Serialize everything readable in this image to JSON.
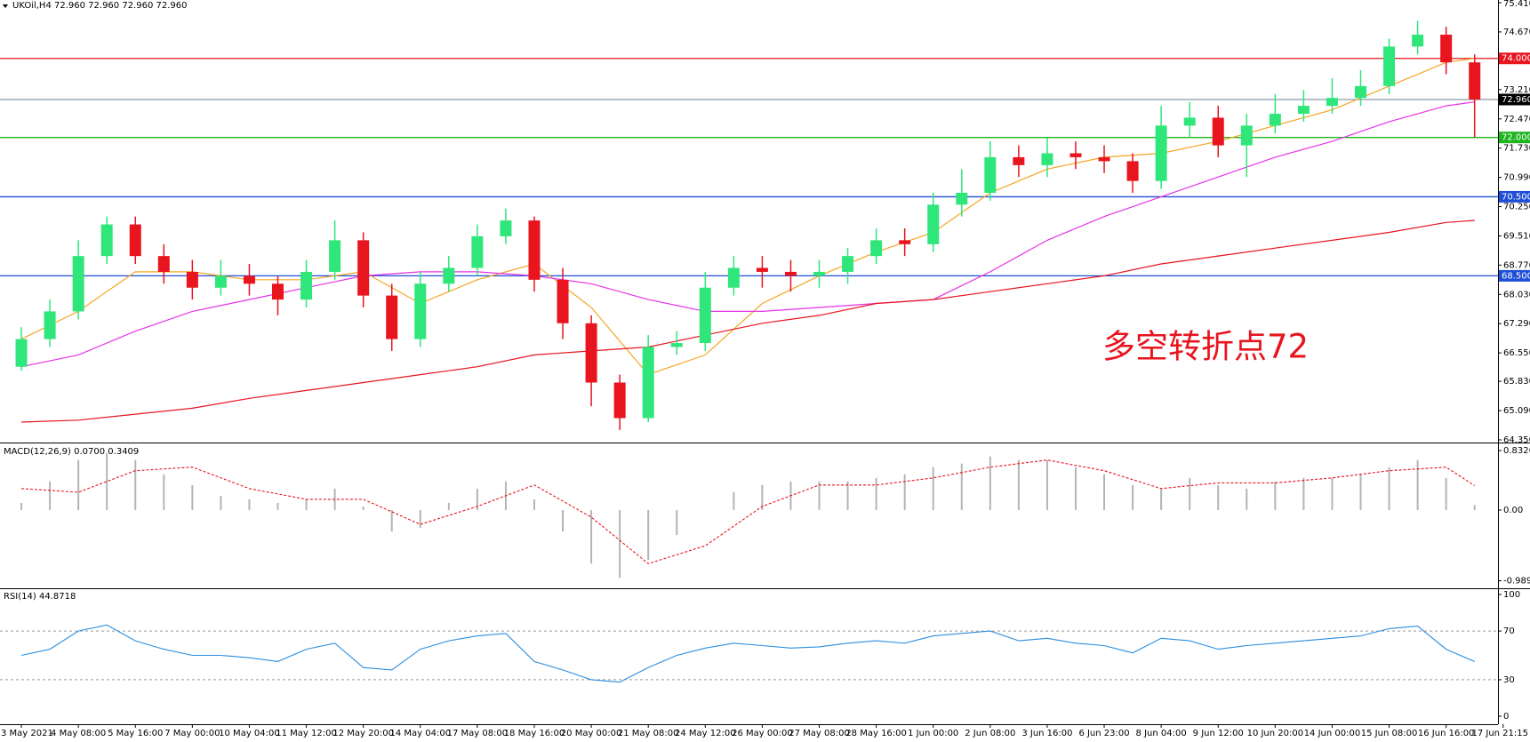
{
  "chart_data": [
    {
      "type": "candlestick",
      "title": "UKOil,H4 72.960 72.960 72.960 72.960",
      "annotation": "多空转折点72",
      "up_color": "#2ee67a",
      "down_color": "#e8141e",
      "x": [
        0,
        1,
        2,
        3,
        4,
        5,
        6,
        7,
        8,
        9,
        10,
        11,
        12,
        13,
        14,
        15,
        16,
        17,
        18,
        19,
        20,
        21,
        22,
        23,
        24,
        25,
        26,
        27,
        28,
        29,
        30,
        31,
        32,
        33,
        34,
        35,
        36,
        37,
        38,
        39,
        40,
        41,
        42,
        43,
        44,
        45,
        46,
        47,
        48,
        49,
        50,
        51
      ],
      "open": [
        66.2,
        66.9,
        67.6,
        69.0,
        69.8,
        69.0,
        68.6,
        68.2,
        68.5,
        68.3,
        67.9,
        68.6,
        69.4,
        68.0,
        66.9,
        68.3,
        68.7,
        69.5,
        69.9,
        68.4,
        67.3,
        65.8,
        64.9,
        66.7,
        66.8,
        68.2,
        68.7,
        68.6,
        68.5,
        68.6,
        69.0,
        69.4,
        69.3,
        70.3,
        70.6,
        71.5,
        71.3,
        71.6,
        71.5,
        71.4,
        70.9,
        72.3,
        72.5,
        71.8,
        72.3,
        72.6,
        72.8,
        73.0,
        73.3,
        74.3,
        74.6,
        73.9
      ],
      "high": [
        67.2,
        67.9,
        69.4,
        70.0,
        70.0,
        69.3,
        68.9,
        68.9,
        68.8,
        68.5,
        68.9,
        69.9,
        69.6,
        68.3,
        68.6,
        69.0,
        69.8,
        70.2,
        70.0,
        68.7,
        67.5,
        66.0,
        67.0,
        67.1,
        68.6,
        69.0,
        69.0,
        68.9,
        68.9,
        69.2,
        69.7,
        69.7,
        70.6,
        71.2,
        71.9,
        71.8,
        72.0,
        71.9,
        71.8,
        71.6,
        72.8,
        72.9,
        72.8,
        72.6,
        73.1,
        73.2,
        73.5,
        73.7,
        74.5,
        74.95,
        74.8,
        74.1
      ],
      "low": [
        66.1,
        66.7,
        67.4,
        68.8,
        68.8,
        68.3,
        67.9,
        68.0,
        68.0,
        67.5,
        67.7,
        68.4,
        67.7,
        66.6,
        66.7,
        68.1,
        68.5,
        69.3,
        68.1,
        66.9,
        65.2,
        64.6,
        64.8,
        66.5,
        66.6,
        68.0,
        68.2,
        68.1,
        68.2,
        68.3,
        68.8,
        69.0,
        69.1,
        70.0,
        70.4,
        71.0,
        71.0,
        71.2,
        71.1,
        70.6,
        70.7,
        72.0,
        71.5,
        71.0,
        72.1,
        72.4,
        72.6,
        72.8,
        73.1,
        74.1,
        73.6,
        72.0
      ],
      "close": [
        66.9,
        67.6,
        69.0,
        69.8,
        69.0,
        68.6,
        68.2,
        68.5,
        68.3,
        67.9,
        68.6,
        69.4,
        68.0,
        66.9,
        68.3,
        68.7,
        69.5,
        69.9,
        68.4,
        67.3,
        65.8,
        64.9,
        66.7,
        66.8,
        68.2,
        68.7,
        68.6,
        68.5,
        68.6,
        69.0,
        69.4,
        69.3,
        70.3,
        70.6,
        71.5,
        71.3,
        71.6,
        71.5,
        71.4,
        70.9,
        72.3,
        72.5,
        71.8,
        72.3,
        72.6,
        72.8,
        73.0,
        73.3,
        74.3,
        74.6,
        73.9,
        72.96
      ],
      "series": [
        {
          "color": "#f5a623",
          "x": [
            0,
            2,
            4,
            6,
            8,
            10,
            12,
            14,
            16,
            18,
            20,
            22,
            24,
            26,
            28,
            30,
            32,
            34,
            36,
            38,
            40,
            42,
            44,
            46,
            48,
            50,
            51
          ],
          "values": [
            66.9,
            67.6,
            68.6,
            68.6,
            68.4,
            68.4,
            68.6,
            67.8,
            68.4,
            68.8,
            67.7,
            66.0,
            66.5,
            67.8,
            68.5,
            69.1,
            69.6,
            70.6,
            71.2,
            71.5,
            71.6,
            71.9,
            72.3,
            72.7,
            73.3,
            73.9,
            74.0
          ]
        },
        {
          "color": "#e633e6",
          "x": [
            0,
            2,
            4,
            6,
            8,
            10,
            12,
            14,
            16,
            18,
            20,
            22,
            24,
            26,
            28,
            30,
            32,
            34,
            36,
            38,
            40,
            42,
            44,
            46,
            48,
            50,
            51
          ],
          "values": [
            66.2,
            66.5,
            67.1,
            67.6,
            67.9,
            68.2,
            68.5,
            68.6,
            68.6,
            68.5,
            68.3,
            67.9,
            67.6,
            67.6,
            67.7,
            67.8,
            67.9,
            68.6,
            69.4,
            70.0,
            70.5,
            71.0,
            71.5,
            71.9,
            72.4,
            72.8,
            72.9
          ]
        },
        {
          "color": "#e8141e",
          "x": [
            0,
            2,
            4,
            6,
            8,
            10,
            12,
            14,
            16,
            18,
            20,
            22,
            24,
            26,
            28,
            30,
            32,
            34,
            36,
            38,
            40,
            42,
            44,
            46,
            48,
            50,
            51
          ],
          "values": [
            64.8,
            64.85,
            65.0,
            65.15,
            65.4,
            65.6,
            65.8,
            66.0,
            66.2,
            66.5,
            66.6,
            66.7,
            67.0,
            67.3,
            67.5,
            67.8,
            67.9,
            68.1,
            68.3,
            68.5,
            68.8,
            69.0,
            69.2,
            69.4,
            69.6,
            69.85,
            69.9
          ]
        }
      ],
      "levels": [
        {
          "value": 74,
          "label": "74.000",
          "color": "#e8141e"
        },
        {
          "value": 72.96,
          "label": "72.960",
          "color": "#000000"
        },
        {
          "value": 72,
          "label": "72.000",
          "color": "#1db51d"
        },
        {
          "value": 70.5,
          "label": "70.500",
          "color": "#1f4fd6"
        },
        {
          "value": 68.5,
          "label": "68.500",
          "color": "#1f4fd6"
        }
      ],
      "xlim": [
        -0.75,
        51.82
      ],
      "xticks": [
        {
          "value": 0,
          "label": "3 May 2021"
        },
        {
          "value": 2,
          "label": "4 May 08:00"
        },
        {
          "value": 4,
          "label": "5 May 16:00"
        },
        {
          "value": 6,
          "label": "7 May 00:00"
        },
        {
          "value": 8,
          "label": "10 May 04:00"
        },
        {
          "value": 10,
          "label": "11 May 12:00"
        },
        {
          "value": 12,
          "label": "12 May 20:00"
        },
        {
          "value": 14,
          "label": "14 May 04:00"
        },
        {
          "value": 16,
          "label": "17 May 08:00"
        },
        {
          "value": 18,
          "label": "18 May 16:00"
        },
        {
          "value": 20,
          "label": "20 May 00:00"
        },
        {
          "value": 22,
          "label": "21 May 08:00"
        },
        {
          "value": 24,
          "label": "24 May 12:00"
        },
        {
          "value": 26,
          "label": "26 May 00:00"
        },
        {
          "value": 28,
          "label": "27 May 08:00"
        },
        {
          "value": 30,
          "label": "28 May 16:00"
        },
        {
          "value": 32,
          "label": "1 Jun 00:00"
        },
        {
          "value": 34,
          "label": "2 Jun 08:00"
        },
        {
          "value": 36,
          "label": "3 Jun 16:00"
        },
        {
          "value": 38,
          "label": "6 Jun 23:00"
        },
        {
          "value": 40,
          "label": "8 Jun 04:00"
        },
        {
          "value": 42,
          "label": "9 Jun 12:00"
        },
        {
          "value": 44,
          "label": "10 Jun 20:00"
        },
        {
          "value": 46,
          "label": "14 Jun 00:00"
        },
        {
          "value": 48,
          "label": "15 Jun 08:00"
        },
        {
          "value": 50,
          "label": "16 Jun 16:00"
        },
        {
          "value": 52,
          "label": "17 Jun 21:15"
        }
      ],
      "ylim": [
        64.35,
        75.41
      ],
      "yticks": [
        {
          "value": 75.41,
          "label": "75.410"
        },
        {
          "value": 74.67,
          "label": "74.670"
        },
        {
          "value": 73.21,
          "label": "73.210"
        },
        {
          "value": 72.47,
          "label": "72.470"
        },
        {
          "value": 71.73,
          "label": "71.730"
        },
        {
          "value": 70.99,
          "label": "70.990"
        },
        {
          "value": 70.25,
          "label": "70.250"
        },
        {
          "value": 69.51,
          "label": "69.510"
        },
        {
          "value": 68.77,
          "label": "68.770"
        },
        {
          "value": 68.03,
          "label": "68.030"
        },
        {
          "value": 67.29,
          "label": "67.290"
        },
        {
          "value": 66.55,
          "label": "66.550"
        },
        {
          "value": 65.83,
          "label": "65.830"
        },
        {
          "value": 65.09,
          "label": "65.090"
        },
        {
          "value": 64.35,
          "label": "64.350"
        }
      ]
    },
    {
      "type": "macd",
      "title": "MACD(12,26,9) 0.0700 0.3409",
      "color": "#b4b4b4",
      "x": [
        0,
        1,
        2,
        3,
        4,
        5,
        6,
        7,
        8,
        9,
        10,
        11,
        12,
        13,
        14,
        15,
        16,
        17,
        18,
        19,
        20,
        21,
        22,
        23,
        24,
        25,
        26,
        27,
        28,
        29,
        30,
        31,
        32,
        33,
        34,
        35,
        36,
        37,
        38,
        39,
        40,
        41,
        42,
        43,
        44,
        45,
        46,
        47,
        48,
        49,
        50,
        51
      ],
      "values": [
        0.1,
        0.4,
        0.7,
        0.8,
        0.7,
        0.5,
        0.35,
        0.2,
        0.15,
        0.1,
        0.15,
        0.3,
        0.05,
        -0.3,
        -0.25,
        0.1,
        0.3,
        0.4,
        0.15,
        -0.3,
        -0.75,
        -0.95,
        -0.7,
        -0.35,
        0.0,
        0.25,
        0.35,
        0.4,
        0.4,
        0.4,
        0.45,
        0.5,
        0.6,
        0.65,
        0.75,
        0.7,
        0.7,
        0.6,
        0.5,
        0.35,
        0.3,
        0.45,
        0.35,
        0.3,
        0.4,
        0.45,
        0.45,
        0.5,
        0.6,
        0.7,
        0.45,
        0.07
      ],
      "signal": {
        "color": "#e8141e",
        "x": [
          0,
          2,
          4,
          6,
          8,
          10,
          12,
          14,
          16,
          18,
          20,
          22,
          24,
          26,
          28,
          30,
          32,
          34,
          36,
          38,
          40,
          42,
          44,
          46,
          48,
          50,
          51
        ],
        "values": [
          0.3,
          0.25,
          0.55,
          0.6,
          0.3,
          0.15,
          0.15,
          -0.2,
          0.05,
          0.35,
          -0.1,
          -0.75,
          -0.5,
          0.05,
          0.35,
          0.35,
          0.45,
          0.6,
          0.7,
          0.55,
          0.3,
          0.38,
          0.38,
          0.45,
          0.55,
          0.6,
          0.3409
        ]
      },
      "ylim": [
        -1.07,
        0.92
      ],
      "yticks": [
        0.8326,
        {
          "value": 0,
          "label": "0.00"
        },
        -0.9897
      ]
    },
    {
      "type": "line",
      "title": "RSI(14) 44.8718",
      "color": "#2a8ee0",
      "x": [
        0,
        1,
        2,
        3,
        4,
        5,
        6,
        7,
        8,
        9,
        10,
        11,
        12,
        13,
        14,
        15,
        16,
        17,
        18,
        19,
        20,
        21,
        22,
        23,
        24,
        25,
        26,
        27,
        28,
        29,
        30,
        31,
        32,
        33,
        34,
        35,
        36,
        37,
        38,
        39,
        40,
        41,
        42,
        43,
        44,
        45,
        46,
        47,
        48,
        49,
        50,
        51
      ],
      "values": [
        50,
        55,
        70,
        75,
        62,
        55,
        50,
        50,
        48,
        45,
        55,
        60,
        40,
        38,
        55,
        62,
        66,
        68,
        45,
        38,
        30,
        28,
        40,
        50,
        56,
        60,
        58,
        56,
        57,
        60,
        62,
        60,
        66,
        68,
        70,
        62,
        64,
        60,
        58,
        52,
        64,
        62,
        55,
        58,
        60,
        62,
        64,
        66,
        72,
        74,
        55,
        44.8718
      ],
      "levels": [
        70,
        30
      ],
      "ylim": [
        0,
        100
      ],
      "yticks": [
        100,
        70,
        30,
        0
      ]
    }
  ]
}
